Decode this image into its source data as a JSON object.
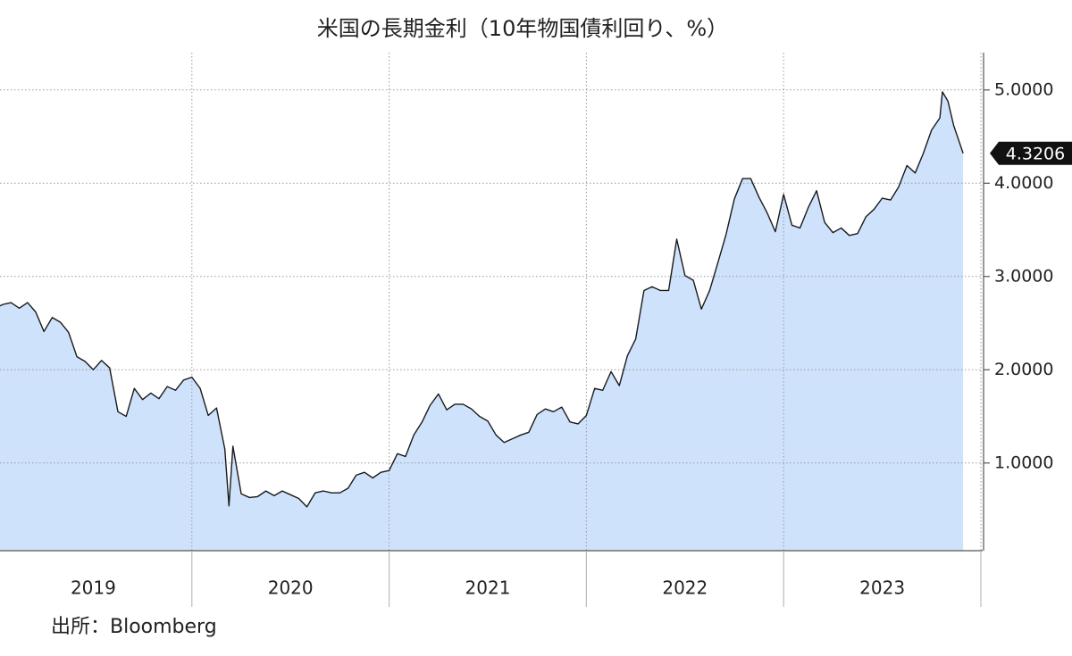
{
  "chart_data": {
    "type": "area",
    "title": "米国の長期金利（10年物国債利回り、%）",
    "source": "出所：Bloomberg",
    "color": "#1a1a1a",
    "fill_color": "#cfe2fb",
    "grid": true,
    "xlim": [
      2019,
      2024
    ],
    "ylim": [
      0.06,
      5.4
    ],
    "yticks": [
      {
        "value": 1,
        "label": "1.0000"
      },
      {
        "value": 2,
        "label": "2.0000"
      },
      {
        "value": 3,
        "label": "3.0000"
      },
      {
        "value": 4,
        "label": "4.0000"
      },
      {
        "value": 5,
        "label": "5.0000"
      }
    ],
    "xticks": [
      {
        "value": 2019.5,
        "label": "2019"
      },
      {
        "value": 2020.5,
        "label": "2020"
      },
      {
        "value": 2021.5,
        "label": "2021"
      },
      {
        "value": 2022.5,
        "label": "2022"
      },
      {
        "value": 2023.5,
        "label": "2023"
      }
    ],
    "xgrid": [
      2020,
      2021,
      2022,
      2023,
      2024
    ],
    "x": [
      2019.0,
      2019.042,
      2019.083,
      2019.125,
      2019.167,
      2019.208,
      2019.25,
      2019.292,
      2019.333,
      2019.375,
      2019.417,
      2019.458,
      2019.5,
      2019.542,
      2019.583,
      2019.625,
      2019.667,
      2019.708,
      2019.75,
      2019.792,
      2019.833,
      2019.875,
      2019.917,
      2019.958,
      2020.0,
      2020.042,
      2020.083,
      2020.125,
      2020.167,
      2020.188,
      2020.208,
      2020.25,
      2020.292,
      2020.333,
      2020.375,
      2020.417,
      2020.458,
      2020.5,
      2020.542,
      2020.583,
      2020.625,
      2020.667,
      2020.708,
      2020.75,
      2020.792,
      2020.833,
      2020.875,
      2020.917,
      2020.958,
      2021.0,
      2021.042,
      2021.083,
      2021.125,
      2021.167,
      2021.208,
      2021.25,
      2021.292,
      2021.333,
      2021.375,
      2021.417,
      2021.458,
      2021.5,
      2021.542,
      2021.583,
      2021.625,
      2021.667,
      2021.708,
      2021.75,
      2021.792,
      2021.833,
      2021.875,
      2021.917,
      2021.958,
      2022.0,
      2022.042,
      2022.083,
      2022.125,
      2022.167,
      2022.208,
      2022.25,
      2022.292,
      2022.333,
      2022.375,
      2022.417,
      2022.458,
      2022.5,
      2022.542,
      2022.583,
      2022.625,
      2022.667,
      2022.708,
      2022.75,
      2022.792,
      2022.833,
      2022.875,
      2022.917,
      2022.958,
      2023.0,
      2023.042,
      2023.083,
      2023.125,
      2023.167,
      2023.208,
      2023.25,
      2023.292,
      2023.333,
      2023.375,
      2023.417,
      2023.458,
      2023.5,
      2023.542,
      2023.583,
      2023.625,
      2023.667,
      2023.708,
      2023.75,
      2023.792,
      2023.805,
      2023.833,
      2023.862,
      2023.91
    ],
    "values": [
      2.66,
      2.7,
      2.72,
      2.66,
      2.72,
      2.62,
      2.41,
      2.56,
      2.51,
      2.4,
      2.14,
      2.09,
      2.0,
      2.1,
      2.02,
      1.55,
      1.5,
      1.8,
      1.68,
      1.75,
      1.69,
      1.82,
      1.78,
      1.89,
      1.92,
      1.8,
      1.51,
      1.59,
      1.15,
      0.54,
      1.18,
      0.67,
      0.63,
      0.64,
      0.7,
      0.65,
      0.7,
      0.66,
      0.62,
      0.53,
      0.68,
      0.7,
      0.68,
      0.68,
      0.73,
      0.87,
      0.9,
      0.84,
      0.9,
      0.92,
      1.1,
      1.07,
      1.3,
      1.44,
      1.62,
      1.74,
      1.57,
      1.63,
      1.63,
      1.58,
      1.5,
      1.45,
      1.3,
      1.22,
      1.26,
      1.3,
      1.33,
      1.52,
      1.58,
      1.55,
      1.6,
      1.44,
      1.42,
      1.51,
      1.8,
      1.78,
      1.98,
      1.83,
      2.15,
      2.33,
      2.85,
      2.89,
      2.85,
      2.85,
      3.4,
      3.01,
      2.96,
      2.65,
      2.85,
      3.15,
      3.45,
      3.83,
      4.05,
      4.05,
      3.85,
      3.68,
      3.48,
      3.88,
      3.55,
      3.52,
      3.74,
      3.92,
      3.58,
      3.47,
      3.52,
      3.44,
      3.46,
      3.64,
      3.72,
      3.84,
      3.82,
      3.96,
      4.19,
      4.11,
      4.32,
      4.57,
      4.7,
      4.98,
      4.88,
      4.62,
      4.3206
    ]
  }
}
